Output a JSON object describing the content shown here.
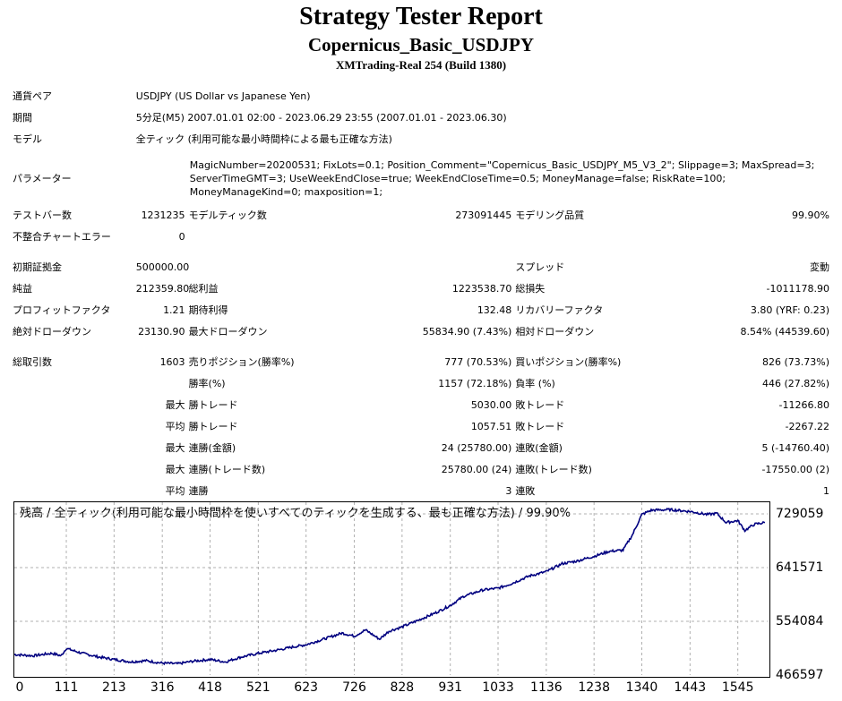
{
  "report": {
    "title": "Strategy Tester Report",
    "subtitle": "Copernicus_Basic_USDJPY",
    "server": "XMTrading-Real 254 (Build 1380)"
  },
  "info": {
    "pair_label": "通貨ペア",
    "pair_value": "USDJPY (US Dollar vs Japanese Yen)",
    "period_label": "期間",
    "period_value": "5分足(M5) 2007.01.01 02:00 - 2023.06.29 23:55 (2007.01.01 - 2023.06.30)",
    "model_label": "モデル",
    "model_value": "全ティック (利用可能な最小時間枠による最も正確な方法)",
    "params_label": "パラメーター",
    "params_value": "MagicNumber=20200531; FixLots=0.1; Position_Comment=\"Copernicus_Basic_USDJPY_M5_V3_2\"; Slippage=3; MaxSpread=3; ServerTimeGMT=3; UseWeekEndClose=true; WeekEndCloseTime=0.5; MoneyManage=false; RiskRate=100; MoneyManageKind=0; maxposition=1;"
  },
  "stats": {
    "bars_label": "テストバー数",
    "bars": "1231235",
    "ticks_label": "モデルティック数",
    "ticks": "273091445",
    "quality_label": "モデリング品質",
    "quality": "99.90%",
    "mismatch_label": "不整合チャートエラー",
    "mismatch": "0",
    "deposit_label": "初期証拠金",
    "deposit": "500000.00",
    "spread_label": "スプレッド",
    "spread": "変動",
    "net_label": "純益",
    "net": "212359.80",
    "gross_profit_label": "総利益",
    "gross_profit": "1223538.70",
    "gross_loss_label": "総損失",
    "gross_loss": "-1011178.90",
    "pf_label": "プロフィットファクタ",
    "pf": "1.21",
    "expected_label": "期待利得",
    "expected": "132.48",
    "recovery_label": "リカバリーファクタ",
    "recovery": "3.80 (YRF: 0.23)",
    "abs_dd_label": "絶対ドローダウン",
    "abs_dd": "23130.90",
    "max_dd_label": "最大ドローダウン",
    "max_dd": "55834.90 (7.43%)",
    "rel_dd_label": "相対ドローダウン",
    "rel_dd": "8.54% (44539.60)",
    "total_label": "総取引数",
    "total": "1603",
    "short_label": "売りポジション(勝率%)",
    "short": "777 (70.53%)",
    "long_label": "買いポジション(勝率%)",
    "long": "826 (73.73%)",
    "win_pct_label": "勝率(%)",
    "win_pct": "1157 (72.18%)",
    "loss_pct_label": "負率 (%)",
    "loss_pct": "446 (27.82%)",
    "max_label": "最大",
    "avg_label": "平均",
    "best_label": "勝トレード",
    "best": "5030.00",
    "worst_label": "敗トレード",
    "worst": "-11266.80",
    "avg_win_label": "勝トレード",
    "avg_win": "1057.51",
    "avg_loss_label": "敗トレード",
    "avg_loss": "-2267.22",
    "cons_win_amt_label": "連勝(金額)",
    "cons_win_amt": "24 (25780.00)",
    "cons_loss_amt_label": "連敗(金額)",
    "cons_loss_amt": "5 (-14760.40)",
    "cons_win_cnt_label": "連勝(トレード数)",
    "cons_win_cnt": "25780.00 (24)",
    "cons_loss_cnt_label": "連敗(トレード数)",
    "cons_loss_cnt": "-17550.00 (2)",
    "avg_cons_win_label": "連勝",
    "avg_cons_win": "3",
    "avg_cons_loss_label": "連敗",
    "avg_cons_loss": "1"
  },
  "chart_data": {
    "type": "line",
    "title": "残高 / 全ティック(利用可能な最小時間枠を使いすべてのティックを生成する、最も正確な方法) / 99.90%",
    "x_ticks": [
      "0",
      "111",
      "213",
      "316",
      "418",
      "521",
      "623",
      "726",
      "828",
      "931",
      "1033",
      "1136",
      "1238",
      "1340",
      "1443",
      "1545"
    ],
    "y_ticks": [
      "729059",
      "641571",
      "554084",
      "466597"
    ],
    "ylim": [
      466597,
      748000
    ],
    "xlim": [
      0,
      1603
    ],
    "grid": true,
    "line_color": "#000080",
    "series": [
      {
        "x": [
          0,
          40,
          80,
          100,
          111,
          140,
          180,
          213,
          250,
          280,
          316,
          350,
          380,
          418,
          450,
          480,
          521,
          560,
          600,
          623,
          660,
          700,
          726,
          750,
          780,
          800,
          828,
          860,
          900,
          931,
          960,
          1000,
          1033,
          1060,
          1100,
          1136,
          1170,
          1200,
          1238,
          1270,
          1300,
          1320,
          1340,
          1360,
          1400,
          1443,
          1480,
          1500,
          1520,
          1545,
          1560,
          1580,
          1603
        ],
        "y": [
          500000,
          498000,
          502000,
          498000,
          510000,
          503000,
          496000,
          492000,
          488000,
          490000,
          486000,
          485000,
          489000,
          492000,
          488000,
          495000,
          502000,
          507000,
          513000,
          516000,
          525000,
          535000,
          530000,
          540000,
          525000,
          538000,
          545000,
          555000,
          568000,
          580000,
          595000,
          605000,
          608000,
          615000,
          628000,
          635000,
          648000,
          652000,
          660000,
          668000,
          670000,
          695000,
          728000,
          735000,
          736000,
          733000,
          728000,
          730000,
          715000,
          718000,
          702000,
          712000,
          715000
        ]
      }
    ]
  }
}
